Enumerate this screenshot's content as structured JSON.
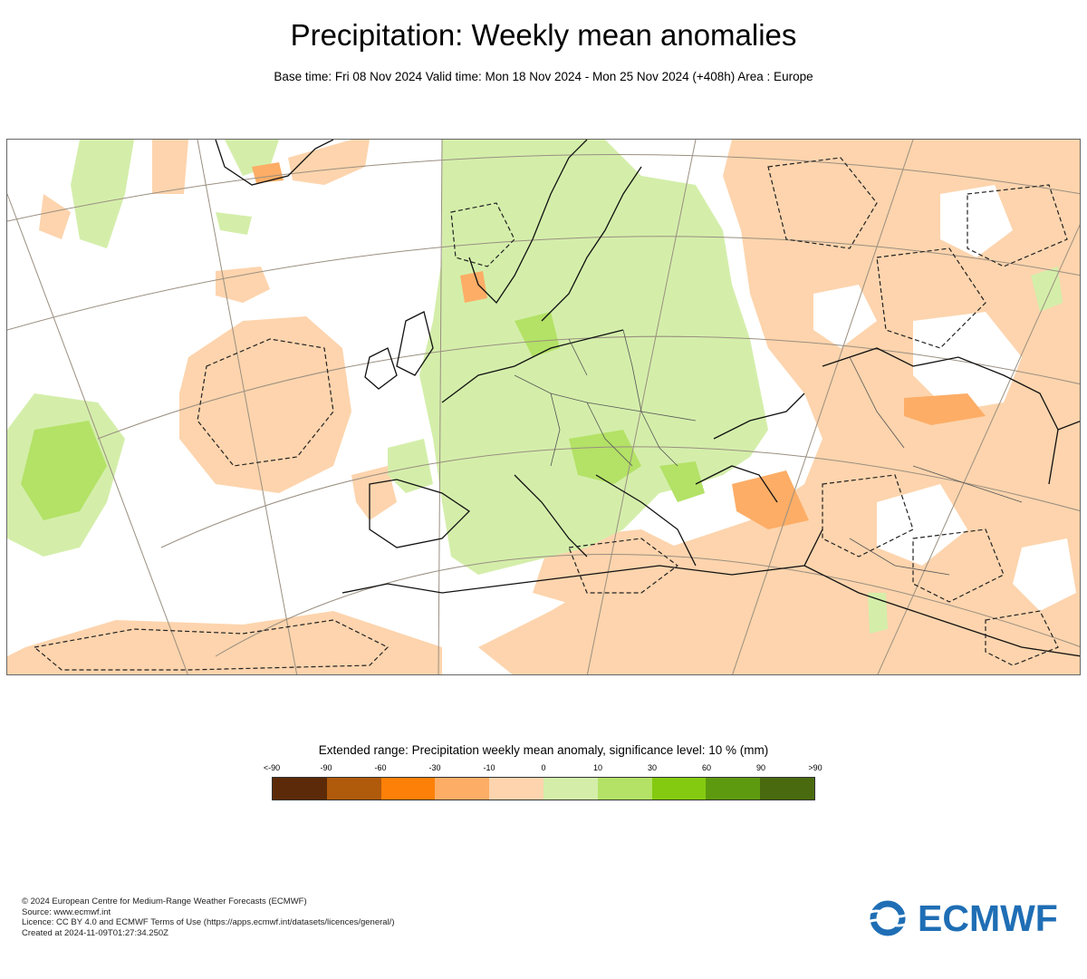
{
  "header": {
    "title": "Precipitation: Weekly mean anomalies",
    "subtitle": "Base time: Fri 08 Nov 2024 Valid time: Mon 18 Nov 2024 - Mon 25 Nov 2024 (+408h) Area : Europe"
  },
  "map": {
    "colors": {
      "dry_light": "#fdd4ad",
      "dry_medium": "#fdad66",
      "wet_light": "#d4eeaa",
      "wet_medium": "#b3e266",
      "coast": "#111111",
      "border": "#555555",
      "graticule": "#9a8f80",
      "significance_contour": "#222222"
    }
  },
  "legend": {
    "title": "Extended range: Precipitation weekly mean anomaly, significance level: 10 % (mm)",
    "labels": [
      "<-90",
      "-90",
      "-60",
      "-30",
      "-10",
      "0",
      "10",
      "30",
      "60",
      "90",
      ">90"
    ],
    "colors": [
      "#5c2a08",
      "#b05a0c",
      "#fd8008",
      "#fdad66",
      "#fdd4ad",
      "#d4eeaa",
      "#b3e266",
      "#84ca10",
      "#5e9a10",
      "#4a6a10"
    ]
  },
  "footer": {
    "lines": [
      "© 2024 European Centre for Medium-Range Weather Forecasts (ECMWF)",
      "Source: www.ecmwf.int",
      "Licence: CC BY 4.0 and ECMWF Terms of Use (https://apps.ecmwf.int/datasets/licences/general/)",
      "Created at 2024-11-09T01:27:34.250Z"
    ]
  },
  "logo": {
    "text": "ECMWF",
    "icon": "ecmwf-wave-icon",
    "color": "#1f6eb5"
  }
}
